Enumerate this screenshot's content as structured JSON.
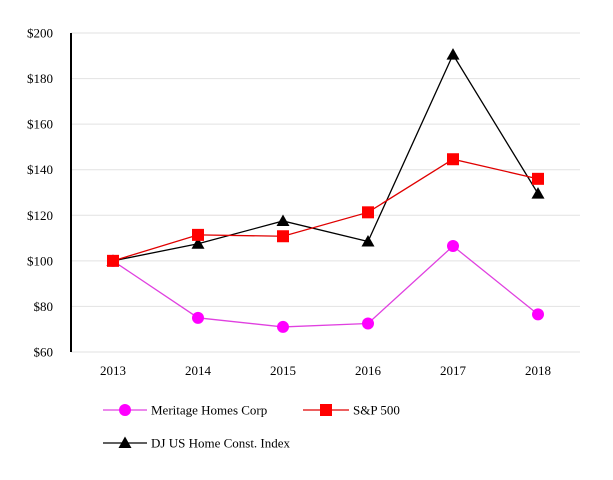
{
  "chart_data": {
    "type": "line",
    "title": "",
    "xlabel": "",
    "ylabel": "",
    "categories": [
      "2013",
      "2014",
      "2015",
      "2016",
      "2017",
      "2018"
    ],
    "ylim": [
      60,
      200
    ],
    "yticks": [
      60,
      80,
      100,
      120,
      140,
      160,
      180,
      200
    ],
    "ytick_labels": [
      "$60",
      "$80",
      "$100",
      "$120",
      "$140",
      "$160",
      "$180",
      "$200"
    ],
    "grid": true,
    "legend_position": "bottom",
    "series": [
      {
        "name": "Meritage Homes Corp",
        "color": "#ff00ff",
        "line_color": "#e040e0",
        "marker": "circle",
        "values": [
          100,
          75,
          71,
          72.5,
          106.5,
          76.5
        ]
      },
      {
        "name": "S&P 500",
        "color": "#ff0000",
        "line_color": "#e00000",
        "marker": "square",
        "values": [
          100,
          111.4,
          110.8,
          121.3,
          144.6,
          136
        ]
      },
      {
        "name": "DJ US Home Const. Index",
        "color": "#000000",
        "line_color": "#000000",
        "marker": "triangle",
        "values": [
          100,
          107.5,
          117.5,
          108.5,
          190.5,
          129.5
        ]
      }
    ]
  }
}
